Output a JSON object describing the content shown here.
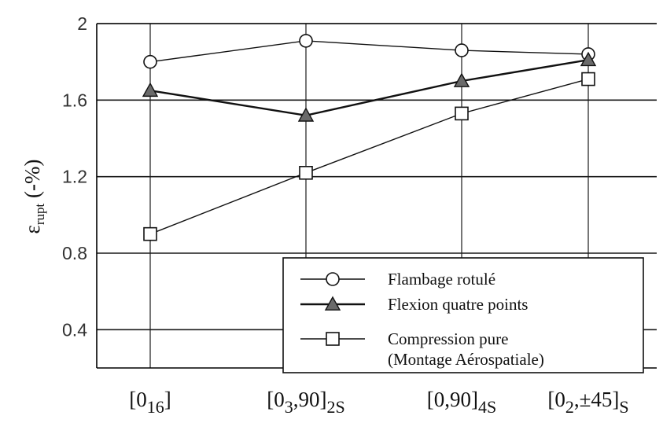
{
  "chart_data": {
    "type": "line",
    "categories": [
      {
        "base": "[0",
        "sub1": "16",
        "mid": "]",
        "sub2": ""
      },
      {
        "base": "[0",
        "sub1": "3",
        "mid": ",90]",
        "sub2": "2S"
      },
      {
        "base": "[0,90]",
        "sub1": "",
        "mid": "",
        "sub2": "4S"
      },
      {
        "base": "[0",
        "sub1": "2",
        "mid": ",±45]",
        "sub2": "S"
      }
    ],
    "ylabel": {
      "symbol": "ε",
      "subscript": "rupt",
      "unit": "(-%)"
    },
    "ylim": [
      0.2,
      2.0
    ],
    "yticks": [
      "0.4",
      "0.8",
      "1.2",
      "1.6",
      "2"
    ],
    "grid": true,
    "series": [
      {
        "name": "Flambage rotulé",
        "marker": "circle-open",
        "values": [
          1.8,
          1.91,
          1.86,
          1.84
        ]
      },
      {
        "name": "Flexion quatre points",
        "marker": "triangle-filled",
        "values": [
          1.65,
          1.52,
          1.7,
          1.81
        ]
      },
      {
        "name": "Compression pure",
        "name_line2": "(Montage Aérospatiale)",
        "marker": "square-open",
        "values": [
          0.9,
          1.22,
          1.53,
          1.71
        ]
      }
    ],
    "legend_position": "bottom-right"
  }
}
